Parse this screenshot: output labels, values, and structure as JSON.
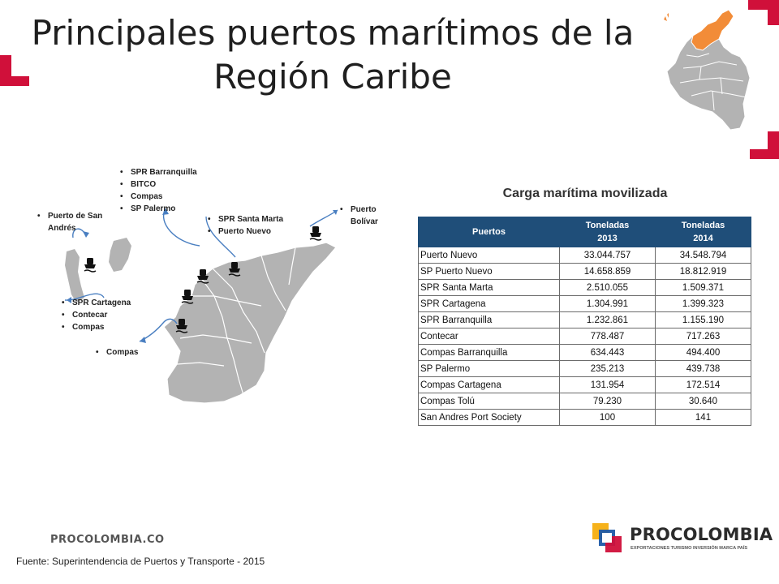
{
  "slide": {
    "title_line1": "Principales puertos marítimos de la",
    "title_line2": "Región Caribe"
  },
  "ports": {
    "san_andres": [
      "Puerto de San Andrés"
    ],
    "barranquilla": [
      "SPR Barranquilla",
      "BITCO",
      "Compas",
      "SP Palermo"
    ],
    "santa_marta": [
      "SPR Santa Marta",
      "Puerto Nuevo"
    ],
    "bolivar": [
      "Puerto Bolívar"
    ],
    "cartagena": [
      "SPR Cartagena",
      "Contecar",
      "Compas"
    ],
    "tolu": [
      "Compas"
    ]
  },
  "table": {
    "title": "Carga marítima movilizada",
    "headers": {
      "port": "Puertos",
      "y2013_a": "Toneladas",
      "y2013_b": "2013",
      "y2014_a": "Toneladas",
      "y2014_b": "2014"
    },
    "rows": [
      {
        "port": "Puerto Nuevo",
        "t2013": "33.044.757",
        "t2014": "34.548.794"
      },
      {
        "port": "SP Puerto Nuevo",
        "t2013": "14.658.859",
        "t2014": "18.812.919"
      },
      {
        "port": "SPR Santa Marta",
        "t2013": "2.510.055",
        "t2014": "1.509.371"
      },
      {
        "port": "SPR Cartagena",
        "t2013": "1.304.991",
        "t2014": "1.399.323"
      },
      {
        "port": "SPR Barranquilla",
        "t2013": "1.232.861",
        "t2014": "1.155.190"
      },
      {
        "port": "Contecar",
        "t2013": "778.487",
        "t2014": "717.263"
      },
      {
        "port": "Compas Barranquilla",
        "t2013": "634.443",
        "t2014": "494.400"
      },
      {
        "port": "SP Palermo",
        "t2013": "235.213",
        "t2014": "439.738"
      },
      {
        "port": "Compas Cartagena",
        "t2013": "131.954",
        "t2014": "172.514"
      },
      {
        "port": "Compas Tolú",
        "t2013": "79.230",
        "t2014": "30.640"
      },
      {
        "port": "San Andres Port Society",
        "t2013": "100",
        "t2014": "141"
      }
    ]
  },
  "footer": {
    "website": "PROCOLOMBIA.CO",
    "source": "Fuente: Superintendencia de Puertos y Transporte - 2015",
    "logo_name": "PROCOLOMBIA",
    "logo_tagline": "EXPORTACIONES TURISMO INVERSIÓN MARCA PAÍS"
  },
  "colors": {
    "accent_red": "#d0103a",
    "table_header": "#1f4e79",
    "map_gray": "#b3b3b3",
    "highlight_orange": "#f28c38",
    "arrow_blue": "#4a7fc1"
  },
  "icons": [
    "ship-icon",
    "colombia-map-icon",
    "region-map",
    "procolombia-logo"
  ]
}
